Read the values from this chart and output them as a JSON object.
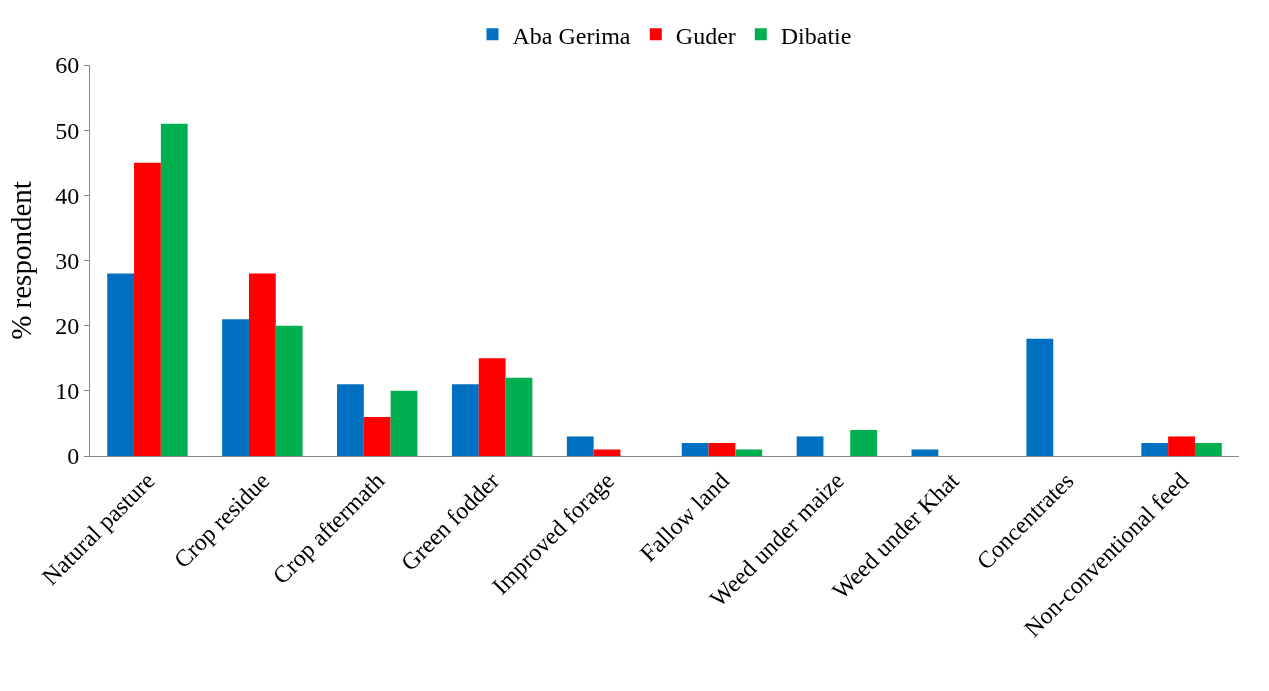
{
  "chart_data": {
    "type": "bar",
    "ylabel": "% respondent",
    "categories": [
      "Natural pasture",
      "Crop residue",
      "Crop aftermath",
      "Green fodder",
      "Improved forage",
      "Fallow land",
      "Weed under maize",
      "Weed under Khat",
      "Concentrates",
      "Non-conventional feed"
    ],
    "series": [
      {
        "name": "Aba Gerima",
        "color": "#0070c0",
        "values": [
          28,
          21,
          11,
          11,
          3,
          2,
          3,
          1,
          18,
          2
        ]
      },
      {
        "name": "Guder",
        "color": "#ff0000",
        "values": [
          45,
          28,
          6,
          15,
          1,
          2,
          0,
          0,
          0,
          3
        ]
      },
      {
        "name": "Dibatie",
        "color": "#00b050",
        "values": [
          51,
          20,
          10,
          12,
          0,
          1,
          4,
          0,
          0,
          2
        ]
      }
    ],
    "ylim": [
      0,
      60
    ],
    "yticks": [
      0,
      10,
      20,
      30,
      40,
      50,
      60
    ],
    "legend": "top"
  }
}
